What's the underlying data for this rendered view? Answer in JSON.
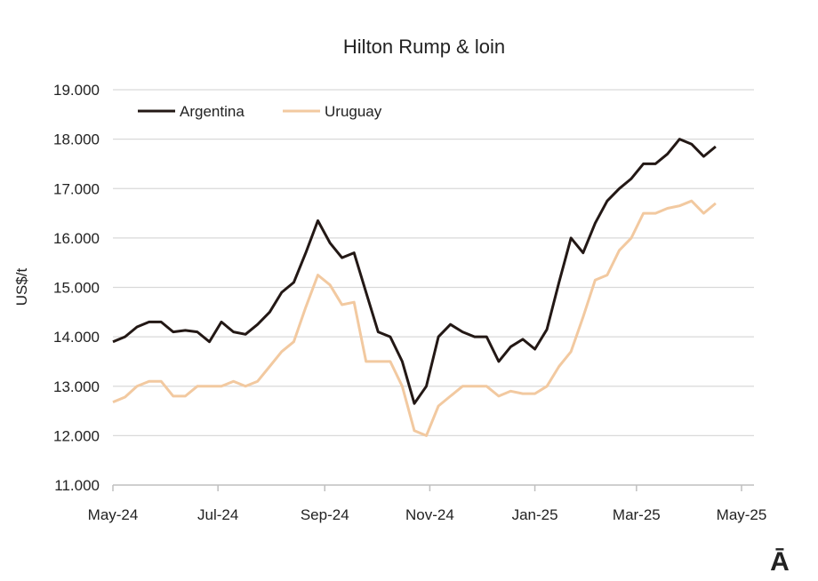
{
  "chart_data": {
    "type": "line",
    "title": "Hilton Rump & loin",
    "xlabel": "",
    "ylabel": "US$/t",
    "ylim": [
      11000,
      19000
    ],
    "yticks": [
      11000,
      12000,
      13000,
      14000,
      15000,
      16000,
      17000,
      18000,
      19000
    ],
    "ytick_labels": [
      "11.000",
      "12.000",
      "13.000",
      "14.000",
      "15.000",
      "16.000",
      "17.000",
      "18.000",
      "19.000"
    ],
    "xlim_days_from_start": [
      0,
      365
    ],
    "xticks_days": [
      0,
      61,
      123,
      184,
      245,
      304,
      365
    ],
    "xtick_labels": [
      "May-24",
      "Jul-24",
      "Sep-24",
      "Nov-24",
      "Jan-25",
      "Mar-25",
      "May-25"
    ],
    "x_step_days": 7,
    "grid": "horizontal",
    "legend_position": "top-left",
    "series": [
      {
        "name": "Argentina",
        "color": "#231815",
        "values": [
          13900,
          14000,
          14200,
          14300,
          14300,
          14100,
          14130,
          14100,
          13900,
          14300,
          14100,
          14050,
          14250,
          14500,
          14900,
          15100,
          15700,
          16350,
          15900,
          15600,
          15700,
          14900,
          14100,
          14000,
          13500,
          12650,
          13000,
          14000,
          14250,
          14100,
          14000,
          14000,
          13500,
          13800,
          13950,
          13750,
          14150,
          15100,
          16000,
          15700,
          16300,
          16750,
          17000,
          17200,
          17500,
          17500,
          17700,
          18000,
          17900,
          17650,
          17850
        ]
      },
      {
        "name": "Uruguay",
        "color": "#F2C9A0",
        "values": [
          12680,
          12780,
          13000,
          13100,
          13100,
          12800,
          12800,
          13000,
          13000,
          13000,
          13100,
          13000,
          13100,
          13400,
          13700,
          13900,
          14600,
          15250,
          15050,
          14650,
          14700,
          13500,
          13500,
          13500,
          13000,
          12100,
          12000,
          12600,
          12800,
          13000,
          13000,
          13000,
          12800,
          12900,
          12850,
          12850,
          13000,
          13400,
          13700,
          14400,
          15150,
          15250,
          15750,
          16000,
          16500,
          16500,
          16600,
          16650,
          16750,
          16500,
          16700
        ]
      }
    ]
  },
  "logo": "Ā"
}
